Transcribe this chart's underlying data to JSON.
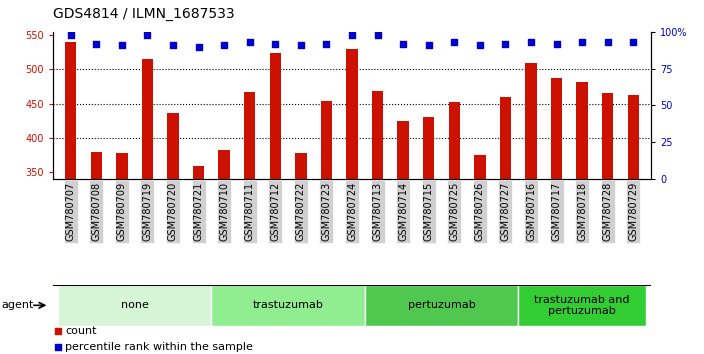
{
  "title": "GDS4814 / ILMN_1687533",
  "samples": [
    "GSM780707",
    "GSM780708",
    "GSM780709",
    "GSM780719",
    "GSM780720",
    "GSM780721",
    "GSM780710",
    "GSM780711",
    "GSM780712",
    "GSM780722",
    "GSM780723",
    "GSM780724",
    "GSM780713",
    "GSM780714",
    "GSM780715",
    "GSM780725",
    "GSM780726",
    "GSM780727",
    "GSM780716",
    "GSM780717",
    "GSM780718",
    "GSM780728",
    "GSM780729"
  ],
  "counts": [
    540,
    379,
    378,
    516,
    436,
    358,
    382,
    467,
    524,
    378,
    454,
    530,
    469,
    424,
    430,
    452,
    375,
    460,
    510,
    488,
    481,
    466,
    463
  ],
  "percentiles": [
    98,
    92,
    91,
    98,
    91,
    90,
    91,
    93,
    92,
    91,
    92,
    98,
    98,
    92,
    91,
    93,
    91,
    92,
    93,
    92,
    93,
    93,
    93
  ],
  "groups": [
    {
      "label": "none",
      "start": 0,
      "end": 6,
      "color": "#d6f5d6"
    },
    {
      "label": "trastuzumab",
      "start": 6,
      "end": 12,
      "color": "#90ee90"
    },
    {
      "label": "pertuzumab",
      "start": 12,
      "end": 18,
      "color": "#50c850"
    },
    {
      "label": "trastuzumab and\npertuzumab",
      "start": 18,
      "end": 23,
      "color": "#32cd32"
    }
  ],
  "bar_color": "#cc1100",
  "dot_color": "#0000cc",
  "ylim_left": [
    340,
    555
  ],
  "ylim_right": [
    0,
    100
  ],
  "yticks_left": [
    350,
    400,
    450,
    500,
    550
  ],
  "yticks_right": [
    0,
    25,
    50,
    75,
    100
  ],
  "title_fontsize": 10,
  "tick_fontsize": 7,
  "label_fontsize": 8,
  "group_fontsize": 8,
  "agent_fontsize": 8
}
